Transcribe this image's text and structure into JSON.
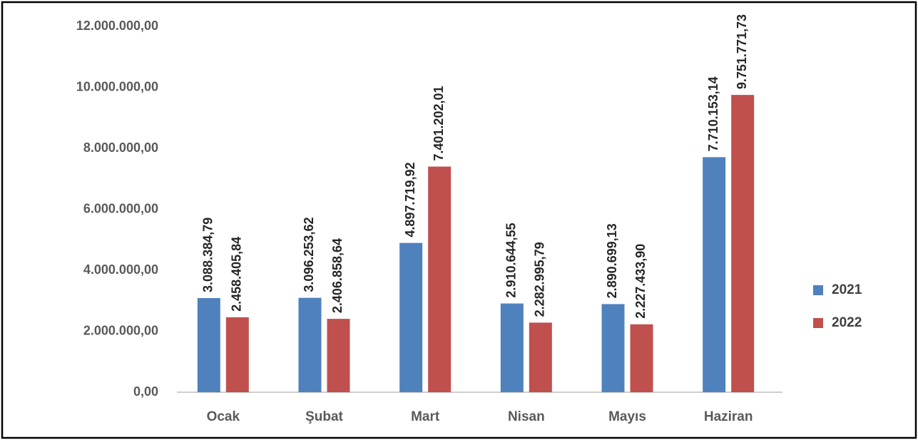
{
  "chart_data": {
    "type": "bar",
    "categories": [
      "Ocak",
      "Şubat",
      "Mart",
      "Nisan",
      "Mayıs",
      "Haziran"
    ],
    "series": [
      {
        "name": "2021",
        "color": "#4f81bd",
        "values": [
          3088384.79,
          3096253.62,
          4897719.92,
          2910644.55,
          2890699.13,
          7710153.14
        ],
        "value_labels": [
          "3.088.384,79",
          "3.096.253,62",
          "4.897.719,92",
          "2.910.644,55",
          "2.890.699,13",
          "7.710.153,14"
        ]
      },
      {
        "name": "2022",
        "color": "#c0504d",
        "values": [
          2458405.84,
          2406858.64,
          7401202.01,
          2282995.79,
          2227433.9,
          9751771.73
        ],
        "value_labels": [
          "2.458.405,84",
          "2.406.858,64",
          "7.401.202,01",
          "2.282.995,79",
          "2.227.433,90",
          "9.751.771,73"
        ]
      }
    ],
    "ylim": [
      0,
      12000000
    ],
    "yticks": [
      {
        "value": 0,
        "label": "0,00"
      },
      {
        "value": 2000000,
        "label": "2.000.000,00"
      },
      {
        "value": 4000000,
        "label": "4.000.000,00"
      },
      {
        "value": 6000000,
        "label": "6.000.000,00"
      },
      {
        "value": 8000000,
        "label": "8.000.000,00"
      },
      {
        "value": 10000000,
        "label": "10.000.000,00"
      },
      {
        "value": 12000000,
        "label": "12.000.000,00"
      }
    ],
    "grid": false,
    "legend": "right"
  }
}
